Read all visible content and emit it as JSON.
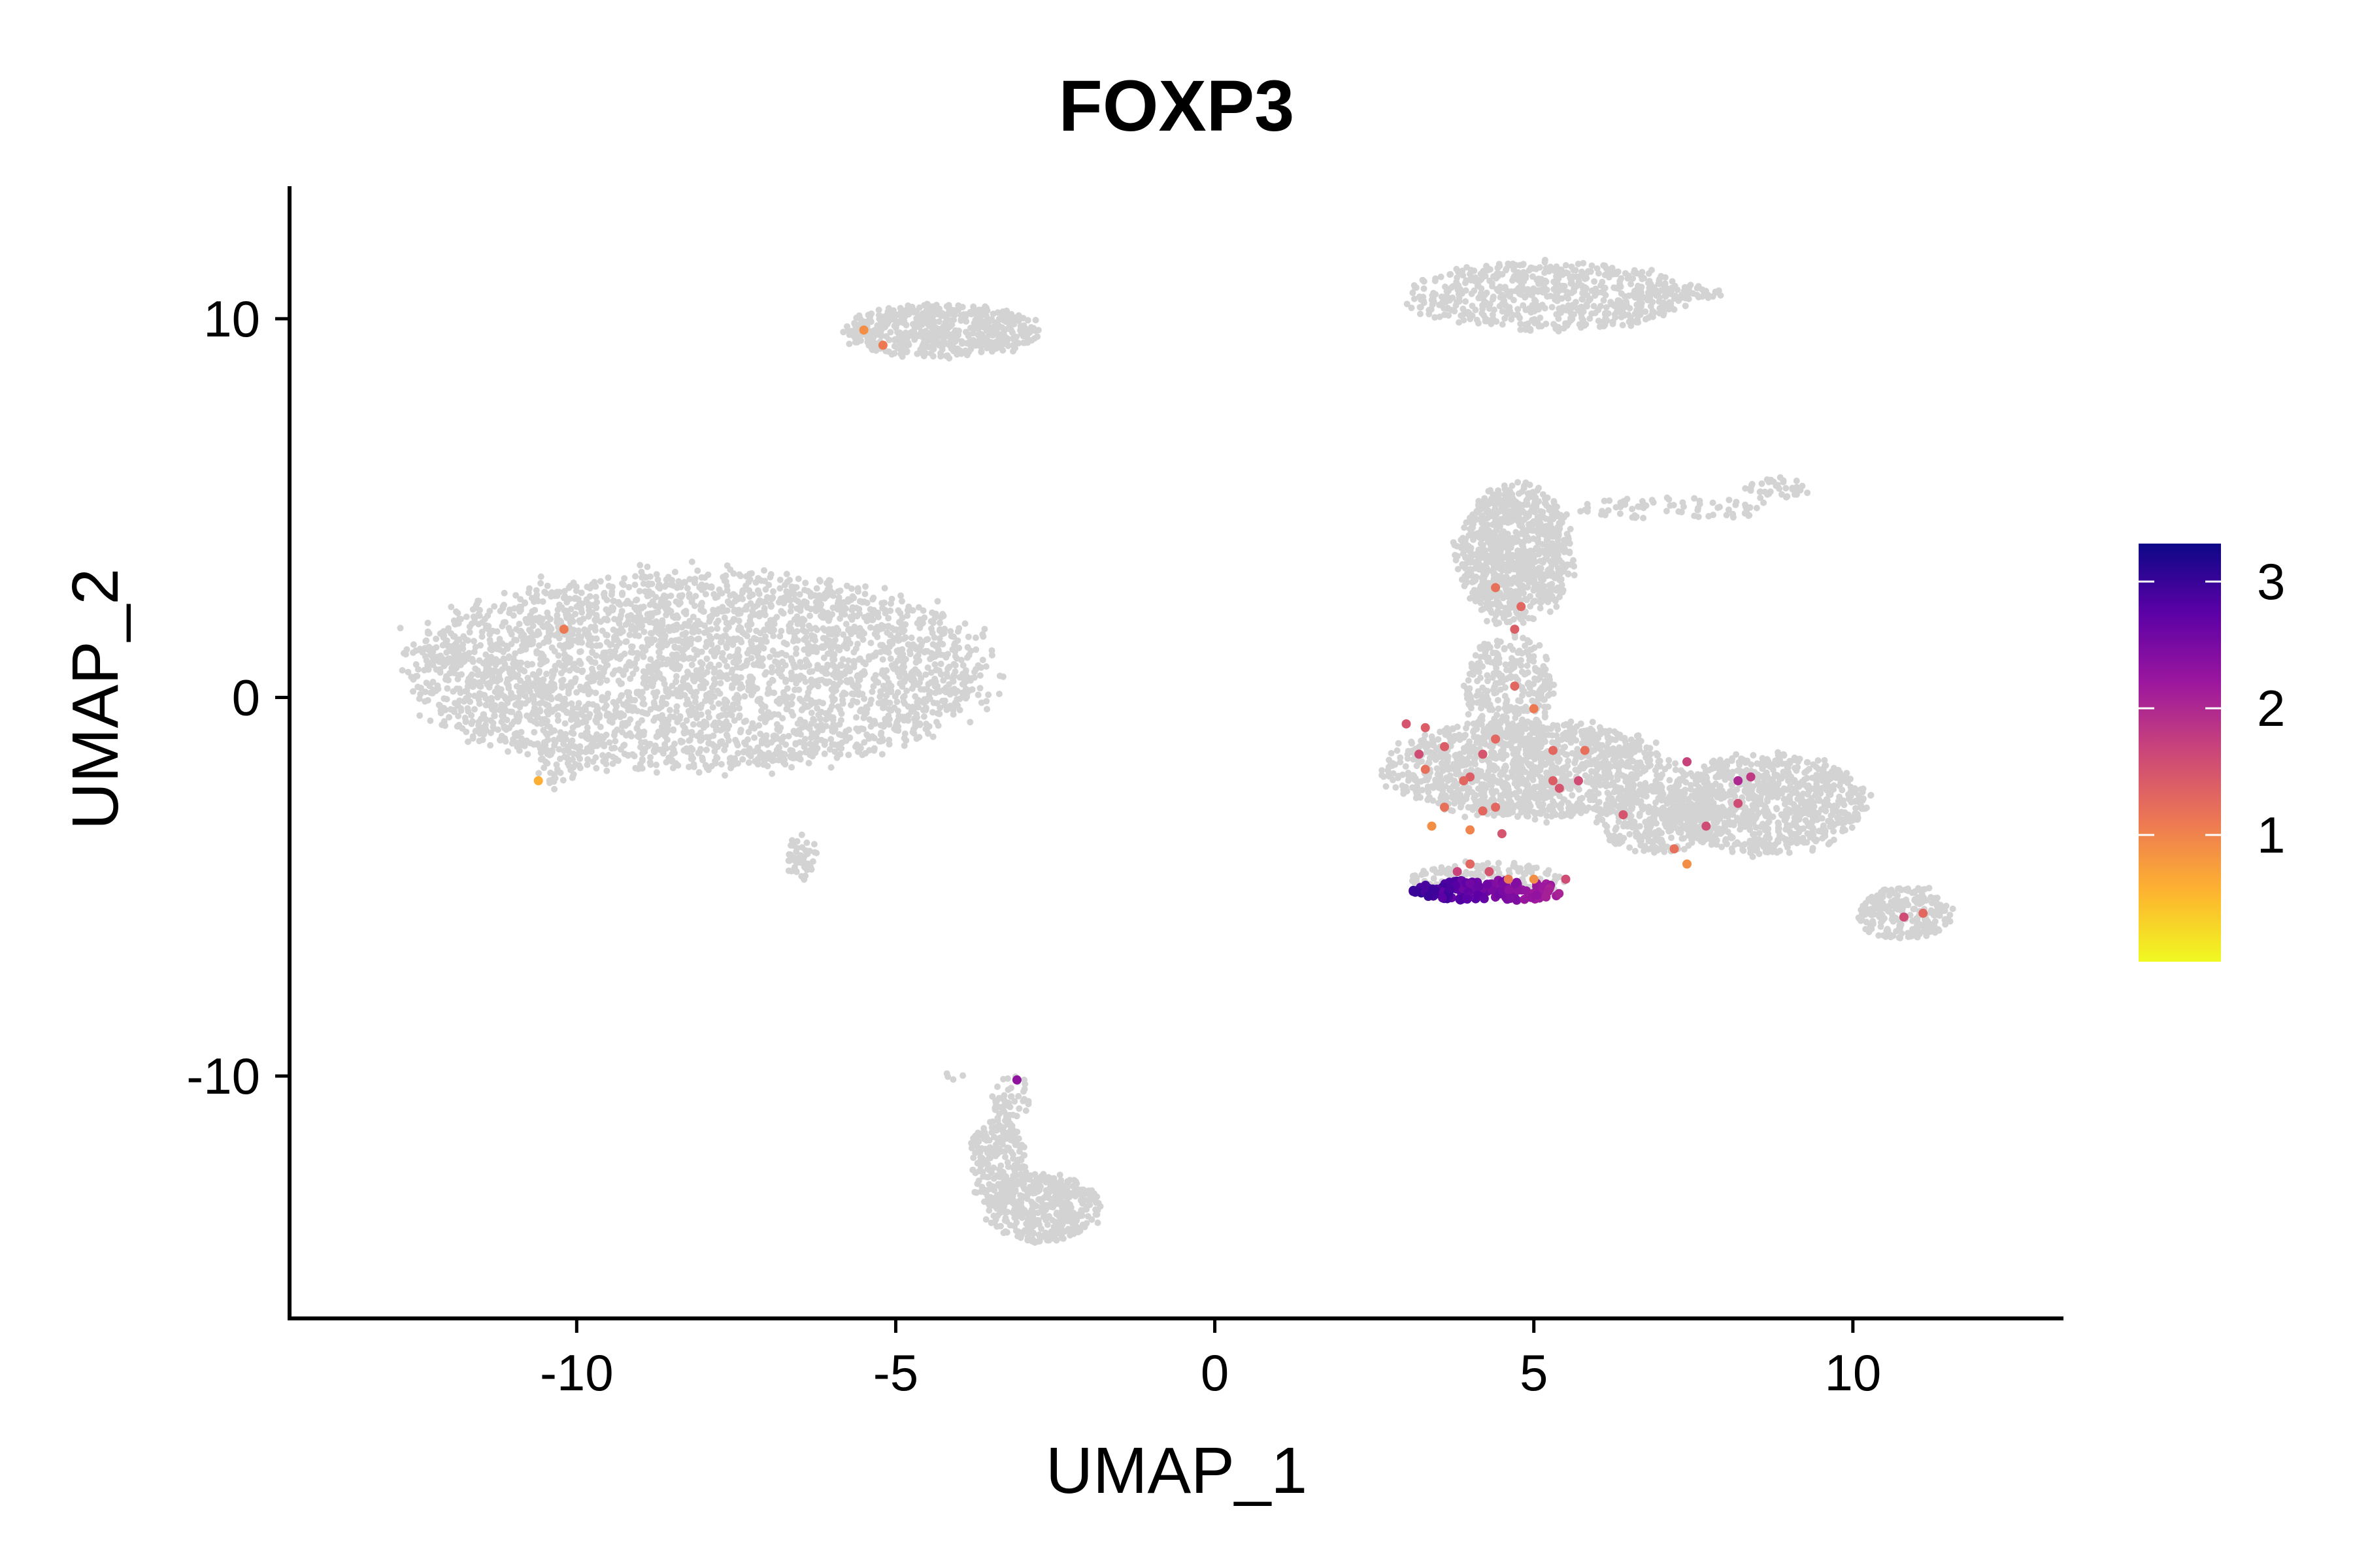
{
  "chart_data": {
    "type": "scatter",
    "title": "FOXP3",
    "xlabel": "UMAP_1",
    "ylabel": "UMAP_2",
    "xlim": [
      -14.5,
      13.3
    ],
    "ylim": [
      -16.4,
      13.5
    ],
    "x_ticks": [
      {
        "value": -10,
        "label": "-10"
      },
      {
        "value": -5,
        "label": "-5"
      },
      {
        "value": 0,
        "label": "0"
      },
      {
        "value": 5,
        "label": "5"
      },
      {
        "value": 10,
        "label": "10"
      }
    ],
    "y_ticks": [
      {
        "value": 10,
        "label": "10"
      },
      {
        "value": 0,
        "label": "0"
      },
      {
        "value": -10,
        "label": "-10"
      }
    ],
    "background_color": "#d3d3d3",
    "colorscale": {
      "name": "plasma",
      "min": 0,
      "max": 3.3,
      "stops": [
        "#f0f921",
        "#fdb42f",
        "#ed7953",
        "#cc4778",
        "#9c179e",
        "#5c01a6",
        "#0d0887"
      ],
      "ticks": [
        {
          "value": 1,
          "label": "1"
        },
        {
          "value": 2,
          "label": "2"
        },
        {
          "value": 3,
          "label": "3"
        }
      ]
    },
    "background_clusters": [
      {
        "cx": -8.1,
        "cy": 0.7,
        "rx": 4.5,
        "ry": 2.6,
        "n": 3200
      },
      {
        "cx": -12.0,
        "cy": 1.0,
        "rx": 0.4,
        "ry": 0.25,
        "n": 20
      },
      {
        "cx": -11.1,
        "cy": 0.7,
        "rx": 0.5,
        "ry": 0.3,
        "n": 30
      },
      {
        "cx": -10.3,
        "cy": -1.8,
        "rx": 0.3,
        "ry": 0.6,
        "n": 40
      },
      {
        "cx": -6.5,
        "cy": -4.2,
        "rx": 0.25,
        "ry": 0.6,
        "n": 45
      },
      {
        "cx": -4.3,
        "cy": 9.7,
        "rx": 1.5,
        "ry": 0.7,
        "n": 550
      },
      {
        "cx": 5.2,
        "cy": 10.6,
        "rx": 2.2,
        "ry": 0.9,
        "n": 650
      },
      {
        "cx": 7.4,
        "cy": 10.7,
        "rx": 0.6,
        "ry": 0.2,
        "n": 40
      },
      {
        "cx": 4.7,
        "cy": 3.8,
        "rx": 0.9,
        "ry": 1.8,
        "n": 900
      },
      {
        "cx": 7.3,
        "cy": 5.0,
        "rx": 1.6,
        "ry": 0.3,
        "n": 70
      },
      {
        "cx": 8.8,
        "cy": 5.5,
        "rx": 0.5,
        "ry": 0.3,
        "n": 40
      },
      {
        "cx": 4.6,
        "cy": 0.3,
        "rx": 0.7,
        "ry": 1.4,
        "n": 300
      },
      {
        "cx": 4.9,
        "cy": -1.9,
        "rx": 2.2,
        "ry": 1.3,
        "n": 1300
      },
      {
        "cx": 8.6,
        "cy": -2.8,
        "rx": 1.6,
        "ry": 1.3,
        "n": 900
      },
      {
        "cx": 7.0,
        "cy": -3.2,
        "rx": 1.0,
        "ry": 0.9,
        "n": 350
      },
      {
        "cx": 4.3,
        "cy": -4.8,
        "rx": 1.2,
        "ry": 0.45,
        "n": 200
      },
      {
        "cx": 10.8,
        "cy": -5.7,
        "rx": 0.75,
        "ry": 0.7,
        "n": 240
      },
      {
        "cx": -3.2,
        "cy": -10.6,
        "rx": 0.3,
        "ry": 0.6,
        "n": 50
      },
      {
        "cx": -3.4,
        "cy": -12.3,
        "rx": 0.45,
        "ry": 1.2,
        "n": 220
      },
      {
        "cx": -2.7,
        "cy": -13.5,
        "rx": 0.9,
        "ry": 0.9,
        "n": 420
      },
      {
        "cx": -4.1,
        "cy": -10.0,
        "rx": 0.15,
        "ry": 0.1,
        "n": 4
      }
    ],
    "highlight_cluster": {
      "cx": 4.3,
      "cy": -5.1,
      "rx": 1.25,
      "ry": 0.28,
      "n": 140,
      "value_min": 1.4,
      "value_max": 3.3
    },
    "points": [
      {
        "x": -5.5,
        "y": 9.7,
        "value": 0.9
      },
      {
        "x": -5.2,
        "y": 9.3,
        "value": 1.1
      },
      {
        "x": -10.2,
        "y": 1.8,
        "value": 1.1
      },
      {
        "x": -10.6,
        "y": -2.2,
        "value": 0.6
      },
      {
        "x": -3.1,
        "y": -10.1,
        "value": 2.3
      },
      {
        "x": 4.4,
        "y": 2.9,
        "value": 1.2
      },
      {
        "x": 4.8,
        "y": 2.4,
        "value": 1.3
      },
      {
        "x": 4.7,
        "y": 1.8,
        "value": 1.4
      },
      {
        "x": 4.7,
        "y": 0.3,
        "value": 1.3
      },
      {
        "x": 5.0,
        "y": -0.3,
        "value": 1.1
      },
      {
        "x": 3.0,
        "y": -0.7,
        "value": 1.5
      },
      {
        "x": 3.3,
        "y": -0.8,
        "value": 1.4
      },
      {
        "x": 3.6,
        "y": -1.3,
        "value": 1.4
      },
      {
        "x": 3.2,
        "y": -1.5,
        "value": 1.6
      },
      {
        "x": 3.3,
        "y": -1.9,
        "value": 1.2
      },
      {
        "x": 4.4,
        "y": -1.1,
        "value": 1.3
      },
      {
        "x": 4.2,
        "y": -1.5,
        "value": 1.5
      },
      {
        "x": 4.0,
        "y": -2.1,
        "value": 1.4
      },
      {
        "x": 3.9,
        "y": -2.2,
        "value": 1.3
      },
      {
        "x": 5.3,
        "y": -1.4,
        "value": 1.3
      },
      {
        "x": 5.8,
        "y": -1.4,
        "value": 1.2
      },
      {
        "x": 5.4,
        "y": -2.4,
        "value": 1.5
      },
      {
        "x": 5.3,
        "y": -2.2,
        "value": 1.4
      },
      {
        "x": 5.7,
        "y": -2.2,
        "value": 1.6
      },
      {
        "x": 3.6,
        "y": -2.9,
        "value": 1.2
      },
      {
        "x": 4.4,
        "y": -2.9,
        "value": 1.3
      },
      {
        "x": 4.0,
        "y": -3.5,
        "value": 1.0
      },
      {
        "x": 4.2,
        "y": -3.0,
        "value": 1.3
      },
      {
        "x": 4.5,
        "y": -3.6,
        "value": 1.5
      },
      {
        "x": 3.4,
        "y": -3.4,
        "value": 0.9
      },
      {
        "x": 6.4,
        "y": -3.1,
        "value": 1.5
      },
      {
        "x": 7.2,
        "y": -4.0,
        "value": 1.2
      },
      {
        "x": 7.4,
        "y": -4.4,
        "value": 0.9
      },
      {
        "x": 7.7,
        "y": -3.4,
        "value": 1.6
      },
      {
        "x": 7.4,
        "y": -1.7,
        "value": 1.7
      },
      {
        "x": 8.2,
        "y": -2.2,
        "value": 2.0
      },
      {
        "x": 8.4,
        "y": -2.1,
        "value": 1.8
      },
      {
        "x": 8.2,
        "y": -2.8,
        "value": 1.6
      },
      {
        "x": 10.8,
        "y": -5.8,
        "value": 1.6
      },
      {
        "x": 11.1,
        "y": -5.7,
        "value": 1.3
      },
      {
        "x": 4.0,
        "y": -4.4,
        "value": 1.3
      },
      {
        "x": 4.3,
        "y": -4.6,
        "value": 1.5
      },
      {
        "x": 3.8,
        "y": -4.6,
        "value": 1.7
      },
      {
        "x": 4.6,
        "y": -4.8,
        "value": 1.1
      },
      {
        "x": 5.0,
        "y": -4.8,
        "value": 0.9
      },
      {
        "x": 5.5,
        "y": -4.8,
        "value": 1.6
      }
    ]
  }
}
